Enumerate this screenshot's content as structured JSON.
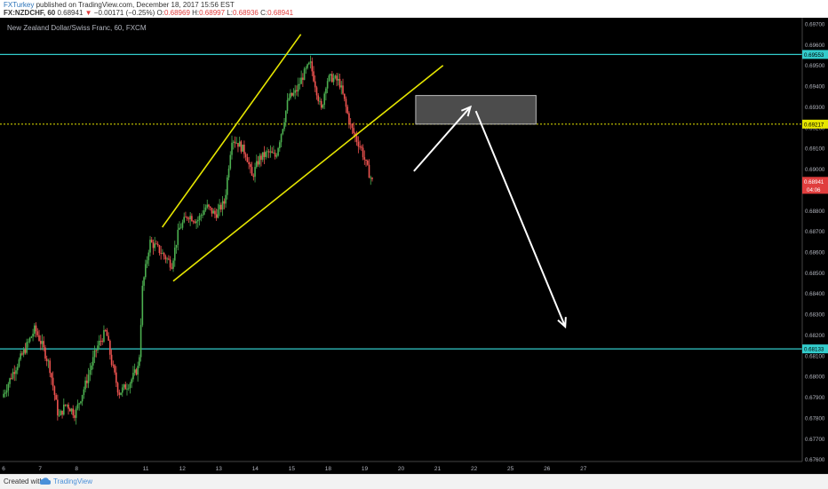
{
  "header": {
    "author": "FXTurkey",
    "published_text": " published on TradingView.com, December 18, 2017 15:56 EST",
    "symbol": "FX:NZDCHF, 60",
    "last_value": "0.68941",
    "down_marker": "▼",
    "change": "−0.00171 (−0.25%)",
    "o_label": "O:",
    "o_value": "0.68969",
    "h_label": "H:",
    "h_value": "0.68997",
    "l_label": "L:",
    "l_value": "0.68936",
    "c_label": "C:",
    "c_value": "0.68941"
  },
  "footer": {
    "created_with": "Created with",
    "brand": "TradingView"
  },
  "chart_data": {
    "type": "candlestick",
    "title": "New Zealand Dollar/Swiss Franc, 60, FXCM",
    "y_range": [
      0.6759,
      0.6973
    ],
    "x_range": [
      5.9,
      27.9
    ],
    "x_tick_labels": [
      "6",
      "7",
      "8",
      "11",
      "12",
      "13",
      "14",
      "15",
      "18",
      "19",
      "20",
      "21",
      "22",
      "25",
      "26",
      "27"
    ],
    "y_tick_labels": [
      "0.69700",
      "0.69600",
      "0.69500",
      "0.69400",
      "0.69300",
      "0.69200",
      "0.69100",
      "0.69000",
      "0.68900",
      "0.68800",
      "0.68700",
      "0.68600",
      "0.68500",
      "0.68400",
      "0.68300",
      "0.68200",
      "0.68100",
      "0.68000",
      "0.67900",
      "0.67800",
      "0.67700",
      "0.67600"
    ],
    "price_path": [
      [
        6.0,
        0.679
      ],
      [
        6.3,
        0.6802
      ],
      [
        6.6,
        0.6812
      ],
      [
        6.9,
        0.6823
      ],
      [
        7.1,
        0.6815
      ],
      [
        7.3,
        0.6805
      ],
      [
        7.55,
        0.678
      ],
      [
        7.75,
        0.6787
      ],
      [
        8.0,
        0.6782
      ],
      [
        8.3,
        0.6797
      ],
      [
        8.6,
        0.6814
      ],
      [
        8.85,
        0.6822
      ],
      [
        9.0,
        0.6807
      ],
      [
        9.2,
        0.6792
      ],
      [
        9.5,
        0.6797
      ],
      [
        9.75,
        0.6805
      ],
      [
        9.85,
        0.6843
      ],
      [
        10.05,
        0.6865
      ],
      [
        10.25,
        0.6862
      ],
      [
        10.45,
        0.6858
      ],
      [
        10.65,
        0.6854
      ],
      [
        10.85,
        0.6871
      ],
      [
        11.1,
        0.6878
      ],
      [
        11.35,
        0.6875
      ],
      [
        11.6,
        0.6882
      ],
      [
        11.85,
        0.6878
      ],
      [
        12.1,
        0.6884
      ],
      [
        12.3,
        0.6915
      ],
      [
        12.5,
        0.6912
      ],
      [
        12.7,
        0.6907
      ],
      [
        12.85,
        0.6896
      ],
      [
        13.05,
        0.6905
      ],
      [
        13.3,
        0.6908
      ],
      [
        13.5,
        0.6906
      ],
      [
        13.7,
        0.6921
      ],
      [
        13.85,
        0.6934
      ],
      [
        14.05,
        0.6937
      ],
      [
        14.25,
        0.6945
      ],
      [
        14.45,
        0.6951
      ],
      [
        14.6,
        0.694
      ],
      [
        14.75,
        0.6928
      ],
      [
        14.9,
        0.6943
      ],
      [
        15.05,
        0.6944
      ],
      [
        15.25,
        0.6942
      ],
      [
        15.4,
        0.6932
      ],
      [
        15.55,
        0.6921
      ],
      [
        15.7,
        0.6915
      ],
      [
        15.85,
        0.691
      ],
      [
        16.0,
        0.6901
      ],
      [
        16.15,
        0.6894
      ]
    ],
    "horizontal_levels": [
      {
        "price": 0.69553,
        "label": "0.69553",
        "color": "#33cccc",
        "style": "solid"
      },
      {
        "price": 0.68133,
        "label": "0.68133",
        "color": "#33cccc",
        "style": "solid"
      },
      {
        "price": 0.69217,
        "label": "0.69217",
        "color": "#e6e600",
        "style": "dotted"
      }
    ],
    "current_price": {
      "label": "0.68941",
      "countdown": "04:06",
      "color": "#e03e3e",
      "price": 0.68941
    },
    "channel_lines": [
      {
        "x1": 10.35,
        "y1": 0.6872,
        "x2": 14.15,
        "y2": 0.6965
      },
      {
        "x1": 10.65,
        "y1": 0.6846,
        "x2": 18.05,
        "y2": 0.695
      }
    ],
    "zone": {
      "x1": 17.3,
      "x2": 20.6,
      "y1": 0.69217,
      "y2": 0.69355
    },
    "arrows": [
      {
        "x1": 17.25,
        "y1": 0.6899,
        "x2": 18.8,
        "y2": 0.693
      },
      {
        "x1": 18.95,
        "y1": 0.6928,
        "x2": 21.4,
        "y2": 0.6824
      }
    ],
    "colors": {
      "up": "#4caf50",
      "down": "#ef5350",
      "background": "#000000",
      "axis_text": "#b2b5be",
      "channel": "#e6e600",
      "arrow": "#ffffff"
    }
  }
}
